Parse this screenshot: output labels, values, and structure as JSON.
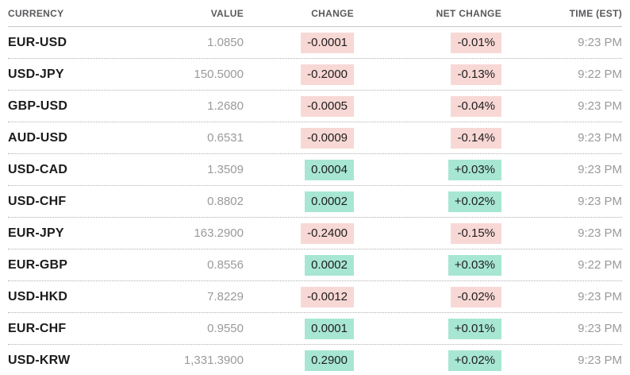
{
  "table": {
    "columns": [
      {
        "label": "CURRENCY"
      },
      {
        "label": "VALUE"
      },
      {
        "label": "CHANGE"
      },
      {
        "label": "NET CHANGE"
      },
      {
        "label": "TIME (EST)"
      }
    ],
    "rows": [
      {
        "currency": "EUR-USD",
        "value": "1.0850",
        "change": "-0.0001",
        "net_change": "-0.01%",
        "time": "9:23 PM",
        "direction": "down"
      },
      {
        "currency": "USD-JPY",
        "value": "150.5000",
        "change": "-0.2000",
        "net_change": "-0.13%",
        "time": "9:22 PM",
        "direction": "down"
      },
      {
        "currency": "GBP-USD",
        "value": "1.2680",
        "change": "-0.0005",
        "net_change": "-0.04%",
        "time": "9:23 PM",
        "direction": "down"
      },
      {
        "currency": "AUD-USD",
        "value": "0.6531",
        "change": "-0.0009",
        "net_change": "-0.14%",
        "time": "9:23 PM",
        "direction": "down"
      },
      {
        "currency": "USD-CAD",
        "value": "1.3509",
        "change": "0.0004",
        "net_change": "+0.03%",
        "time": "9:23 PM",
        "direction": "up"
      },
      {
        "currency": "USD-CHF",
        "value": "0.8802",
        "change": "0.0002",
        "net_change": "+0.02%",
        "time": "9:23 PM",
        "direction": "up"
      },
      {
        "currency": "EUR-JPY",
        "value": "163.2900",
        "change": "-0.2400",
        "net_change": "-0.15%",
        "time": "9:23 PM",
        "direction": "down"
      },
      {
        "currency": "EUR-GBP",
        "value": "0.8556",
        "change": "0.0002",
        "net_change": "+0.03%",
        "time": "9:22 PM",
        "direction": "up"
      },
      {
        "currency": "USD-HKD",
        "value": "7.8229",
        "change": "-0.0012",
        "net_change": "-0.02%",
        "time": "9:23 PM",
        "direction": "down"
      },
      {
        "currency": "EUR-CHF",
        "value": "0.9550",
        "change": "0.0001",
        "net_change": "+0.01%",
        "time": "9:23 PM",
        "direction": "up"
      },
      {
        "currency": "USD-KRW",
        "value": "1,331.3900",
        "change": "0.2900",
        "net_change": "+0.02%",
        "time": "9:23 PM",
        "direction": "up"
      }
    ],
    "colors": {
      "positive_bg": "#a7e6d3",
      "negative_bg": "#f8d8d5",
      "badge_text": "#1d1d1d",
      "muted_text": "#9a9a9a",
      "currency_text": "#1c1c1c",
      "header_text": "#58595b"
    }
  }
}
